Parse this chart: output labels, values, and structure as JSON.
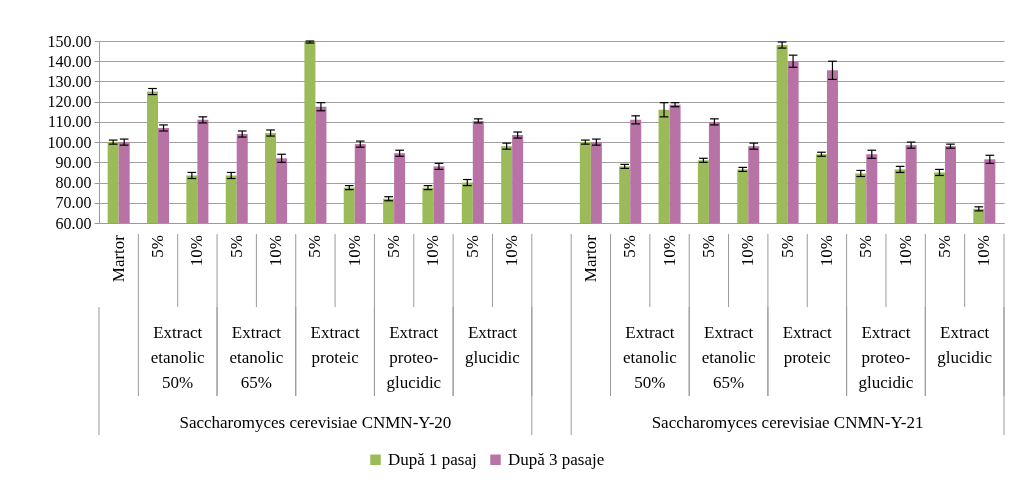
{
  "chart_data": {
    "type": "bar",
    "categories": [
      "Martor",
      "5%",
      "10%",
      "5%",
      "10%",
      "5%",
      "10%",
      "5%",
      "10%",
      "5%",
      "10%",
      null,
      "Martor",
      "5%",
      "10%",
      "5%",
      "10%",
      "5%",
      "10%",
      "5%",
      "10%",
      "5%",
      "10%"
    ],
    "series": [
      {
        "name": "După 1 pasaj",
        "color": "#9bbb59",
        "values": [
          100,
          125,
          83.5,
          83.5,
          104.5,
          149.5,
          77.5,
          72,
          77.5,
          80,
          98,
          null,
          100,
          88,
          116,
          91,
          86.5,
          148,
          94,
          84.5,
          86.5,
          85,
          67
        ],
        "errors": [
          1,
          1.5,
          1.5,
          1.5,
          1.5,
          0.5,
          1,
          1,
          1,
          1.5,
          1.5,
          null,
          1,
          1,
          3.5,
          1,
          1,
          1.5,
          1,
          1.5,
          1.5,
          1.5,
          1
        ]
      },
      {
        "name": "După 3 pasaje",
        "color": "#b772a6",
        "values": [
          100,
          107,
          111,
          104,
          92,
          117.5,
          99,
          94.5,
          88,
          110.5,
          103.5,
          null,
          100,
          111,
          118.5,
          110,
          98,
          140,
          135.5,
          94,
          98.5,
          98,
          91.5
        ],
        "errors": [
          1.5,
          1.5,
          1.5,
          1.5,
          2,
          2,
          1.5,
          1.5,
          1.5,
          1,
          1.5,
          null,
          1.5,
          2,
          1,
          1.5,
          1.5,
          3,
          4.5,
          2,
          1.5,
          1,
          2
        ]
      }
    ],
    "annotations": [
      "Extract etanolic 50%",
      "Extract etanolic 65%",
      "Extract proteic",
      "Extract proteo-glucidic",
      "Extract glucidic",
      "Extract etanolic 50%",
      "Extract etanolic 65%",
      "Extract proteic",
      "Extract proteo-glucidic",
      "Extract glucidic",
      "Saccharomyces cerevisiae CNMN-Y-20",
      "Saccharomyces cerevisiae CNMN-Y-21"
    ],
    "ylim": [
      60,
      150
    ],
    "yticks": [
      {
        "value": 60,
        "label": "60.00"
      },
      {
        "value": 70,
        "label": "70.00"
      },
      {
        "value": 80,
        "label": "80.00"
      },
      {
        "value": 90,
        "label": "90.00"
      },
      {
        "value": 100,
        "label": "100.00"
      },
      {
        "value": 110,
        "label": "110.00"
      },
      {
        "value": 120,
        "label": "120.00"
      },
      {
        "value": 130,
        "label": "130.00"
      },
      {
        "value": 140,
        "label": "140.00"
      },
      {
        "value": 150,
        "label": "150.00"
      }
    ],
    "grid": true,
    "legend": "bottom"
  }
}
